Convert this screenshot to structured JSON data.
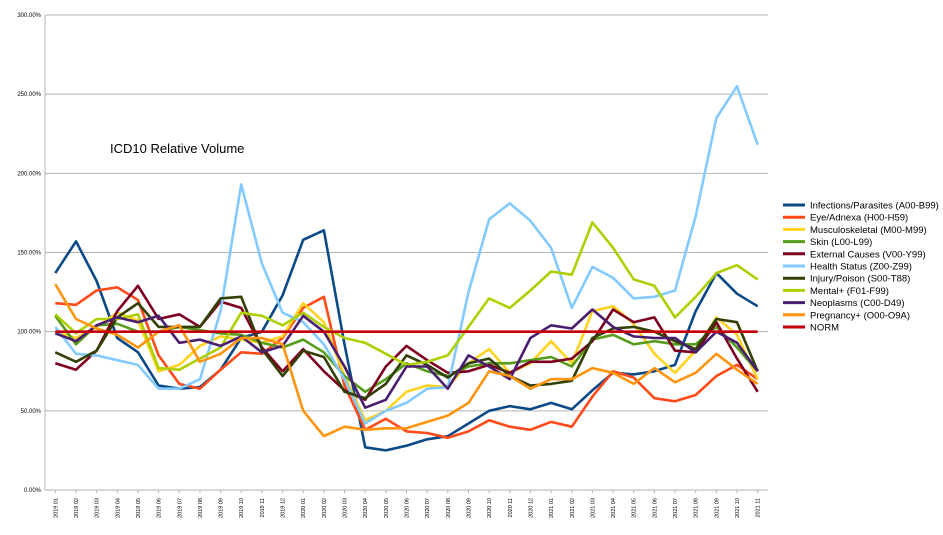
{
  "chart_data": {
    "type": "line",
    "title": "ICD10 Relative Volume",
    "xlabel": "",
    "ylabel": "",
    "ylim": [
      0,
      300
    ],
    "yticks": [
      "0.00%",
      "50.00%",
      "100.00%",
      "150.00%",
      "200.00%",
      "250.00%",
      "300.00%"
    ],
    "grid": "horizontal",
    "legend_position": "right",
    "x": [
      "2019 01",
      "2019 02",
      "2019 03",
      "2019 04",
      "2019 05",
      "2019 06",
      "2019 07",
      "2019 08",
      "2019 09",
      "2019 10",
      "2019 11",
      "2019 12",
      "2020 01",
      "2020 02",
      "2020 03",
      "2020 04",
      "2020 05",
      "2020 06",
      "2020 07",
      "2020 08",
      "2020 09",
      "2020 10",
      "2020 11",
      "2020 12",
      "2021 01",
      "2021 02",
      "2021 03",
      "2021 04",
      "2021 05",
      "2021 06",
      "2021 07",
      "2021 08",
      "2021 09",
      "2021 10",
      "2021 11"
    ],
    "series": [
      {
        "name": "Infections/Parasites (A00-B99)",
        "color": "#0b4a86",
        "values": [
          137,
          157,
          132,
          96,
          87,
          66,
          64,
          65,
          76,
          96,
          100,
          123,
          158,
          164,
          92,
          27,
          25,
          28,
          32,
          34,
          42,
          50,
          53,
          51,
          55,
          51,
          63,
          74,
          73,
          75,
          79,
          113,
          137,
          124,
          116
        ]
      },
      {
        "name": "Eye/Adnexa (H00-H59)",
        "color": "#ff4b19",
        "values": [
          118,
          117,
          126,
          128,
          120,
          85,
          67,
          64,
          76,
          87,
          86,
          96,
          115,
          122,
          66,
          38,
          45,
          37,
          36,
          33,
          37,
          44,
          40,
          38,
          43,
          40,
          59,
          75,
          71,
          58,
          56,
          60,
          72,
          79,
          70
        ]
      },
      {
        "name": "Musculoskeletal (M00-M99)",
        "color": "#ffd320",
        "values": [
          100,
          96,
          103,
          112,
          107,
          75,
          79,
          91,
          97,
          95,
          93,
          97,
          118,
          106,
          72,
          44,
          50,
          62,
          66,
          65,
          80,
          89,
          74,
          80,
          94,
          80,
          113,
          116,
          105,
          86,
          74,
          88,
          109,
          98,
          70
        ]
      },
      {
        "name": "Skin (L00-L99)",
        "color": "#579d1c",
        "values": [
          110,
          92,
          104,
          105,
          100,
          100,
          103,
          101,
          99,
          98,
          93,
          90,
          95,
          87,
          72,
          62,
          70,
          80,
          75,
          72,
          78,
          80,
          80,
          82,
          84,
          78,
          95,
          98,
          92,
          94,
          92,
          92,
          103,
          90,
          75
        ]
      },
      {
        "name": "External Causes (V00-Y99)",
        "color": "#7e0021",
        "values": [
          80,
          76,
          88,
          113,
          129,
          108,
          111,
          103,
          119,
          115,
          90,
          75,
          89,
          75,
          63,
          57,
          78,
          91,
          82,
          74,
          75,
          79,
          74,
          81,
          81,
          83,
          94,
          114,
          106,
          109,
          88,
          87,
          106,
          83,
          62
        ]
      },
      {
        "name": "Health Status (Z00-Z99)",
        "color": "#83caff",
        "values": [
          103,
          86,
          85,
          82,
          79,
          64,
          64,
          70,
          113,
          193,
          143,
          112,
          106,
          92,
          70,
          42,
          50,
          55,
          64,
          65,
          125,
          171,
          181,
          170,
          153,
          115,
          141,
          134,
          121,
          122,
          126,
          173,
          235,
          255,
          218
        ]
      },
      {
        "name": "Injury/Poison (S00-T88)",
        "color": "#314004",
        "values": [
          87,
          81,
          88,
          109,
          118,
          103,
          103,
          103,
          121,
          122,
          89,
          72,
          88,
          84,
          62,
          58,
          67,
          85,
          79,
          71,
          80,
          83,
          72,
          66,
          67,
          69,
          96,
          102,
          103,
          100,
          94,
          89,
          108,
          106,
          75
        ]
      },
      {
        "name": "Mental+ (F01-F99)",
        "color": "#aecf00",
        "values": [
          111,
          99,
          108,
          108,
          111,
          77,
          76,
          83,
          90,
          112,
          110,
          104,
          112,
          103,
          96,
          93,
          86,
          79,
          81,
          85,
          103,
          121,
          115,
          126,
          138,
          136,
          169,
          153,
          133,
          129,
          109,
          122,
          137,
          142,
          133
        ]
      },
      {
        "name": "Neoplasms (C00-D49)",
        "color": "#4b1f6f",
        "values": [
          99,
          94,
          104,
          109,
          106,
          110,
          93,
          95,
          91,
          97,
          87,
          91,
          110,
          100,
          78,
          52,
          57,
          78,
          78,
          64,
          85,
          78,
          70,
          96,
          104,
          102,
          114,
          103,
          97,
          96,
          96,
          87,
          100,
          93,
          75
        ]
      },
      {
        "name": "Pregnancy+ (O00-O9A)",
        "color": "#ff950e",
        "values": [
          130,
          108,
          102,
          98,
          90,
          100,
          104,
          81,
          86,
          96,
          96,
          92,
          50,
          34,
          40,
          38,
          39,
          39,
          43,
          47,
          55,
          75,
          72,
          64,
          70,
          70,
          77,
          74,
          67,
          77,
          68,
          74,
          86,
          76,
          67
        ]
      },
      {
        "name": "NORM",
        "color": "#c5000b",
        "values": [
          100,
          100,
          100,
          100,
          100,
          100,
          100,
          100,
          100,
          100,
          100,
          100,
          100,
          100,
          100,
          100,
          100,
          100,
          100,
          100,
          100,
          100,
          100,
          100,
          100,
          100,
          100,
          100,
          100,
          100,
          100,
          100,
          100,
          100,
          100
        ]
      }
    ]
  }
}
